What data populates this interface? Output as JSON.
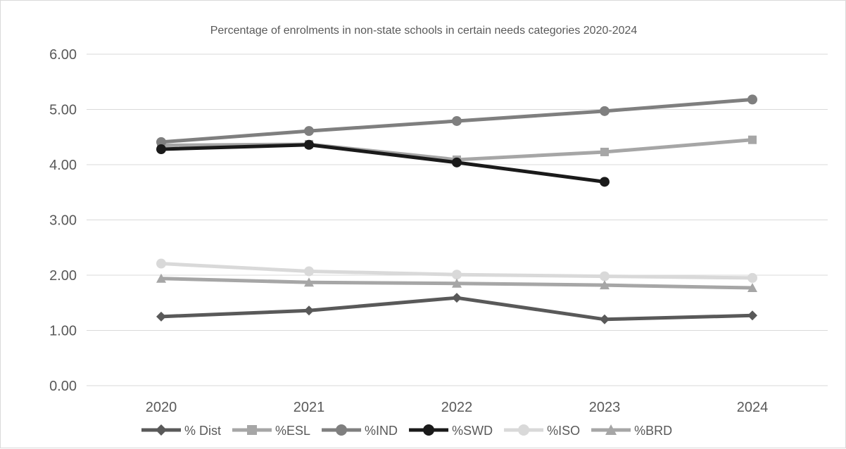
{
  "chart_data": {
    "type": "line",
    "title": "Percentage of enrolments in non-state schools in certain needs categories 2020-2024",
    "xlabel": "",
    "ylabel": "",
    "categories": [
      "2020",
      "2021",
      "2022",
      "2023",
      "2024"
    ],
    "ylim": [
      0,
      6
    ],
    "yticks": [
      "0.00",
      "1.00",
      "2.00",
      "3.00",
      "4.00",
      "5.00",
      "6.00"
    ],
    "grid": true,
    "legend_position": "bottom",
    "series": [
      {
        "name": "% Dist",
        "values": [
          1.25,
          1.36,
          1.59,
          1.2,
          1.27
        ],
        "color": "#595959",
        "marker": "diamond"
      },
      {
        "name": "%ESL",
        "values": [
          4.35,
          4.37,
          4.09,
          4.23,
          4.45
        ],
        "color": "#a6a6a6",
        "marker": "square"
      },
      {
        "name": "%IND",
        "values": [
          4.41,
          4.61,
          4.79,
          4.97,
          5.18
        ],
        "color": "#7f7f7f",
        "marker": "circle"
      },
      {
        "name": "%SWD",
        "values": [
          4.28,
          4.36,
          4.04,
          3.69,
          null
        ],
        "color": "#1a1a1a",
        "marker": "circle"
      },
      {
        "name": "%ISO",
        "values": [
          2.21,
          2.07,
          2.01,
          1.98,
          1.95
        ],
        "color": "#d9d9d9",
        "marker": "circle"
      },
      {
        "name": "%BRD",
        "values": [
          1.94,
          1.87,
          1.85,
          1.82,
          1.77
        ],
        "color": "#a6a6a6",
        "marker": "triangle"
      }
    ]
  }
}
